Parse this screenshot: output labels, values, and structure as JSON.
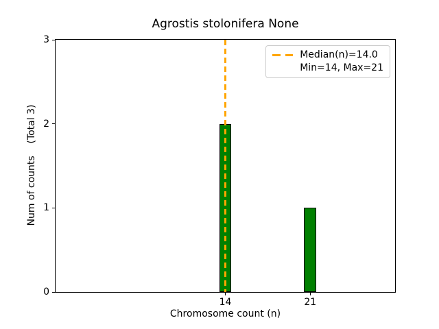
{
  "figure": {
    "background": "#ffffff"
  },
  "chart_data": {
    "type": "bar",
    "title": "Agrostis stolonifera None",
    "xlabel": "Chromosome count (n)",
    "ylabel": "Num of counts    (Total 3)",
    "categories": [
      14,
      21
    ],
    "values": [
      2,
      1
    ],
    "bar_width": 1,
    "bar_color": "#008000",
    "bar_edge_color": "#000000",
    "xlim": [
      0,
      28
    ],
    "ylim": [
      0,
      3
    ],
    "xticks": [
      14,
      21
    ],
    "yticks": [
      0,
      1,
      2,
      3
    ],
    "grid": false,
    "median_line": {
      "x": 14,
      "color": "#ffa500",
      "style": "dashed"
    },
    "legend": {
      "position": "upper right",
      "entries": [
        {
          "sample": "orange-dashed-line",
          "label": "Median(n)=14.0"
        },
        {
          "sample": "none",
          "label": "Min=14, Max=21"
        }
      ]
    }
  }
}
